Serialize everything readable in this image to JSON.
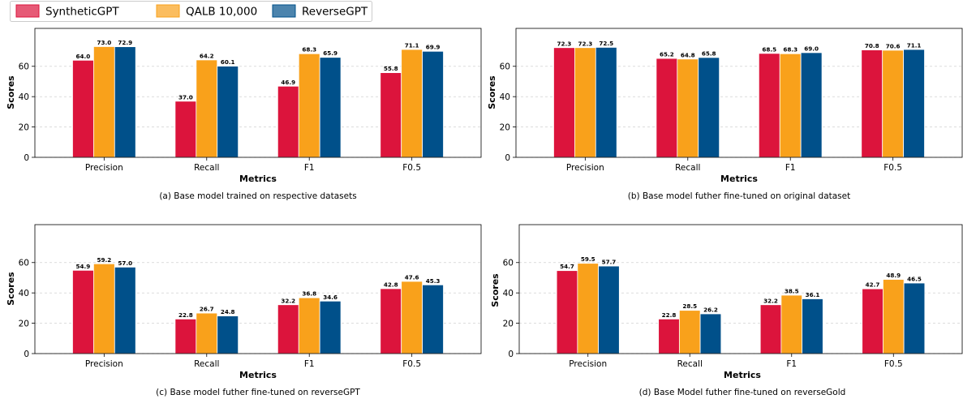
{
  "legend": {
    "items": [
      {
        "label": "SyntheticGPT",
        "color": "#DC143C"
      },
      {
        "label": "QALB 10,000",
        "color": "#F9A11B"
      },
      {
        "label": "ReverseGPT",
        "color": "#00508A"
      }
    ]
  },
  "chart_data": [
    {
      "type": "bar",
      "title": "",
      "caption": "(a) Base model trained on respective datasets",
      "xlabel": "Metrics",
      "ylabel": "Scores",
      "ylim": [
        0,
        85
      ],
      "yticks": [
        0,
        20,
        40,
        60
      ],
      "categories": [
        "Precision",
        "Recall",
        "F1",
        "F0.5"
      ],
      "series": [
        {
          "name": "SyntheticGPT",
          "values": [
            64.0,
            37.0,
            46.9,
            55.8
          ]
        },
        {
          "name": "QALB 10,000",
          "values": [
            73.0,
            64.2,
            68.3,
            71.1
          ]
        },
        {
          "name": "ReverseGPT",
          "values": [
            72.9,
            60.1,
            65.9,
            69.9
          ]
        }
      ],
      "grid": "horizontal dashed",
      "value_labels": true
    },
    {
      "type": "bar",
      "title": "",
      "caption": "(b) Base model futher fine-tuned on original dataset",
      "xlabel": "Metrics",
      "ylabel": "Scores",
      "ylim": [
        0,
        85
      ],
      "yticks": [
        0,
        20,
        40,
        60
      ],
      "categories": [
        "Precision",
        "Recall",
        "F1",
        "F0.5"
      ],
      "series": [
        {
          "name": "SyntheticGPT",
          "values": [
            72.3,
            65.2,
            68.5,
            70.8
          ]
        },
        {
          "name": "QALB 10,000",
          "values": [
            72.3,
            64.8,
            68.3,
            70.6
          ]
        },
        {
          "name": "ReverseGPT",
          "values": [
            72.5,
            65.8,
            69.0,
            71.1
          ]
        }
      ],
      "grid": "horizontal dashed",
      "value_labels": true
    },
    {
      "type": "bar",
      "title": "",
      "caption": "(c) Base model futher fine-tuned on reverseGPT",
      "xlabel": "Metrics",
      "ylabel": "Scores",
      "ylim": [
        0,
        85
      ],
      "yticks": [
        0,
        20,
        40,
        60
      ],
      "categories": [
        "Precision",
        "Recall",
        "F1",
        "F0.5"
      ],
      "series": [
        {
          "name": "SyntheticGPT",
          "values": [
            54.9,
            22.8,
            32.2,
            42.8
          ]
        },
        {
          "name": "QALB 10,000",
          "values": [
            59.2,
            26.7,
            36.8,
            47.6
          ]
        },
        {
          "name": "ReverseGPT",
          "values": [
            57.0,
            24.8,
            34.6,
            45.3
          ]
        }
      ],
      "grid": "horizontal dashed",
      "value_labels": true
    },
    {
      "type": "bar",
      "title": "",
      "caption": "(d) Base Model futher fine-tuned on reverseGold",
      "xlabel": "Metrics",
      "ylabel": "Scores",
      "ylim": [
        0,
        85
      ],
      "yticks": [
        0,
        20,
        40,
        60
      ],
      "categories": [
        "Precision",
        "Recall",
        "F1",
        "F0.5"
      ],
      "series": [
        {
          "name": "SyntheticGPT",
          "values": [
            54.7,
            22.8,
            32.2,
            42.7
          ]
        },
        {
          "name": "QALB 10,000",
          "values": [
            59.5,
            28.5,
            38.5,
            48.9
          ]
        },
        {
          "name": "ReverseGPT",
          "values": [
            57.7,
            26.2,
            36.1,
            46.5
          ]
        }
      ],
      "grid": "horizontal dashed",
      "value_labels": true
    }
  ]
}
